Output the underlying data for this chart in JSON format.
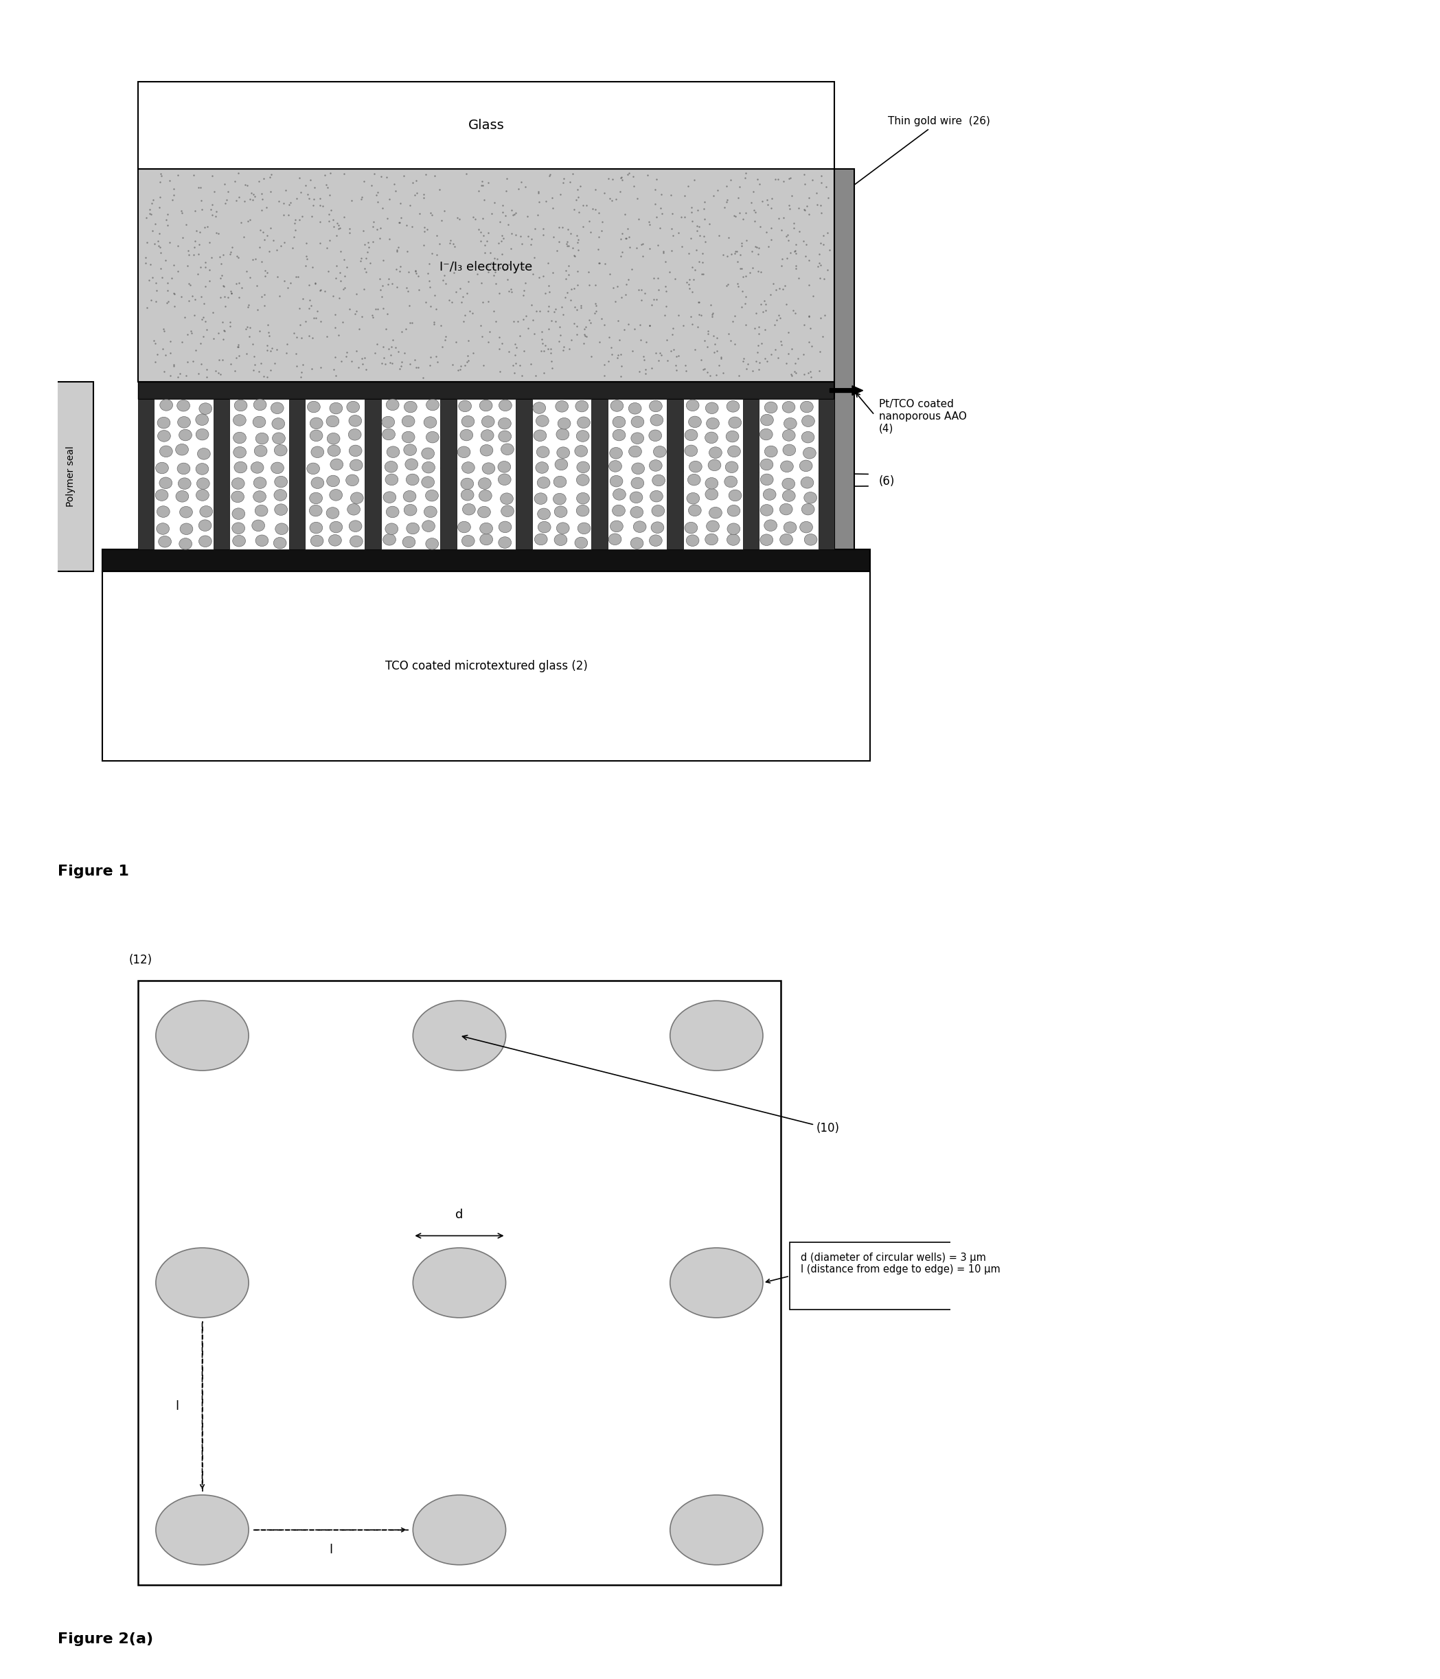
{
  "fig_width": 20.97,
  "fig_height": 24.45,
  "bg_color": "#ffffff",
  "fig1": {
    "title": "Glass",
    "electrolyte_label": "I⁻/I₃ electrolyte",
    "polymer_seal_label": "Polymer seal",
    "bottom_label": "TCO coated microtextured glass (2)",
    "label_4": "Pt/TCO coated\nnanoporous AAO\n(4)",
    "label_6": "(6)",
    "label_26": "Thin gold wire  (26)",
    "num_fingers": 9
  },
  "fig2a": {
    "label_12": "(12)",
    "label_10": "(10)",
    "annotation_text": "d (diameter of circular wells) = 3 μm\nl (distance from edge to edge) = 10 μm"
  }
}
